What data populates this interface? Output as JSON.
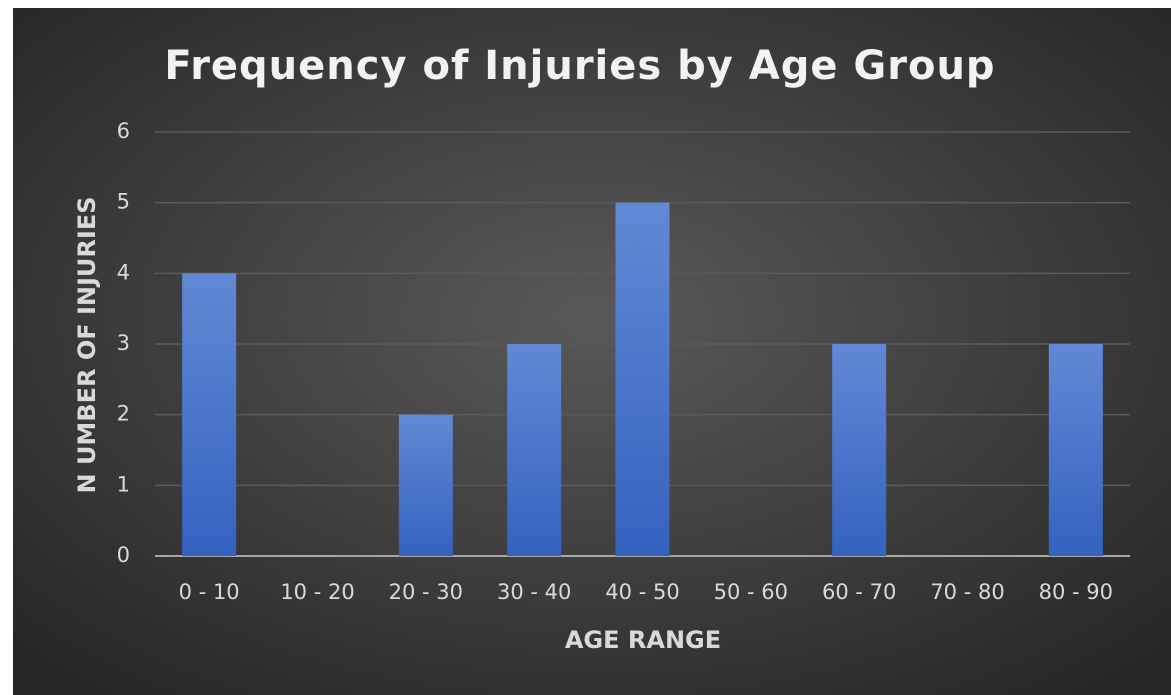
{
  "chart_data": {
    "type": "bar",
    "title": "Frequency of Injuries by Age Group",
    "x_label": "AGE RANGE",
    "y_label": "N UMBER OF INJURIES",
    "categories": [
      "0 - 10",
      "10 - 20",
      "20 - 30",
      "30 - 40",
      "40 - 50",
      "50 - 60",
      "60 - 70",
      "70 - 80",
      "80 - 90"
    ],
    "values": [
      4,
      0,
      2,
      3,
      5,
      0,
      3,
      0,
      3
    ],
    "color": "#4472c4",
    "ylim": [
      0,
      6
    ],
    "yticks": [
      0,
      1,
      2,
      3,
      4,
      5,
      6
    ],
    "grid": true
  }
}
